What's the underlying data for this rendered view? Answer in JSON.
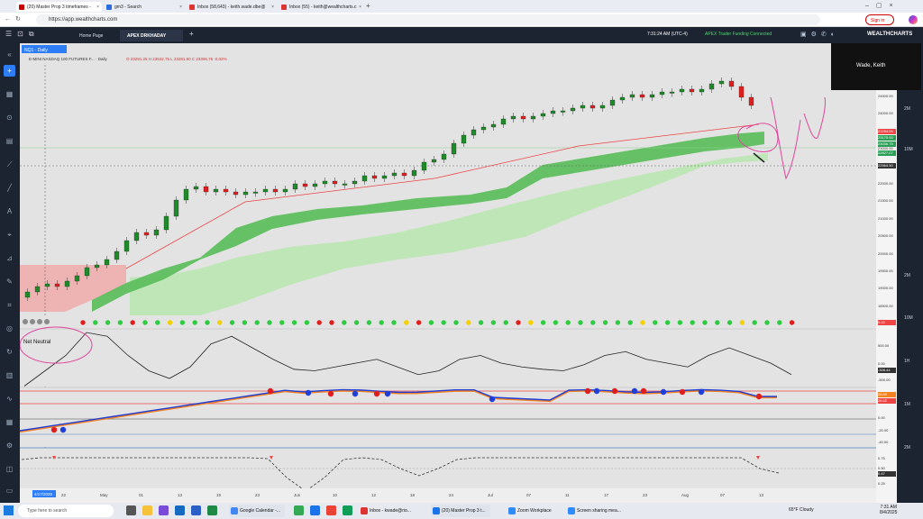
{
  "browser": {
    "tabs": [
      {
        "label": "(20) Master Prop 3 timeframes -",
        "active": true
      },
      {
        "label": "gm3 - Search"
      },
      {
        "label": "Inbox (58,643) - keith.wade.dbe@"
      },
      {
        "label": "Inbox (55) - keith@wealthcharts.c"
      }
    ],
    "url": "https://app.wealthcharts.com",
    "signin": "Sign in"
  },
  "app": {
    "tabs": [
      "Home Page",
      "APEX DRKHADAY"
    ],
    "clock": "7:31:24 AM",
    "tz": "(UTC-4)",
    "connection_label": "APEX Trader Funding",
    "connection_status": "Connected",
    "logo": "WEALTHCHARTS",
    "user": "Wade, Keith"
  },
  "chart": {
    "symbol_tag": "NQ1 - Daily",
    "title": "E-MINI NASDAQ 100 FUTURES F... · Daily",
    "ohlc": "O 23291.25 H 23532.75 L 23281.50 C 23306.75 -0.02%",
    "price_ticks": [
      "24500.00",
      "24000.00",
      "23500.00",
      "23000.00",
      "22500.00",
      "22000.00",
      "21500.00",
      "21000.00",
      "20500.00",
      "20000.00",
      "19500.00",
      "19000.00",
      "18500.00"
    ],
    "price_tags": [
      "23294.00",
      "23175.00",
      "23036.75",
      "22827.07",
      "22564.50"
    ],
    "date_ticks": [
      "22",
      "May",
      "01",
      "13",
      "19",
      "23",
      "Jun",
      "10",
      "12",
      "18",
      "24",
      "Jul",
      "07",
      "11",
      "17",
      "23",
      "Aug",
      "07",
      "13"
    ],
    "date_cursor": "4/17/2025",
    "panel1_value": "0.00",
    "panel2_label": "Net Neutral",
    "panel2_ticks": [
      "500.00",
      "0.00",
      "-500.00"
    ],
    "panel2_value": "-308.44",
    "panel3_ticks": [
      "38.59",
      "26.02",
      "0.00",
      "-20.00",
      "-40.00"
    ],
    "panel4_ticks": [
      "0.75",
      "0.50",
      "0.47",
      "0.25"
    ],
    "right_labels": [
      "2M",
      "10M",
      "2M",
      "10M",
      "1H",
      "1M",
      "2M"
    ]
  },
  "taskbar": {
    "search": "Type here to search",
    "items": [
      "Google Calendar -...",
      "Inbox - kwade@rio...",
      "(20) Master Prop 3 t...",
      "Zoom Workplace",
      "Screen sharing mea..."
    ],
    "weather": "65°F Cloudy",
    "time": "7:31 AM",
    "date": "8/4/2025"
  }
}
